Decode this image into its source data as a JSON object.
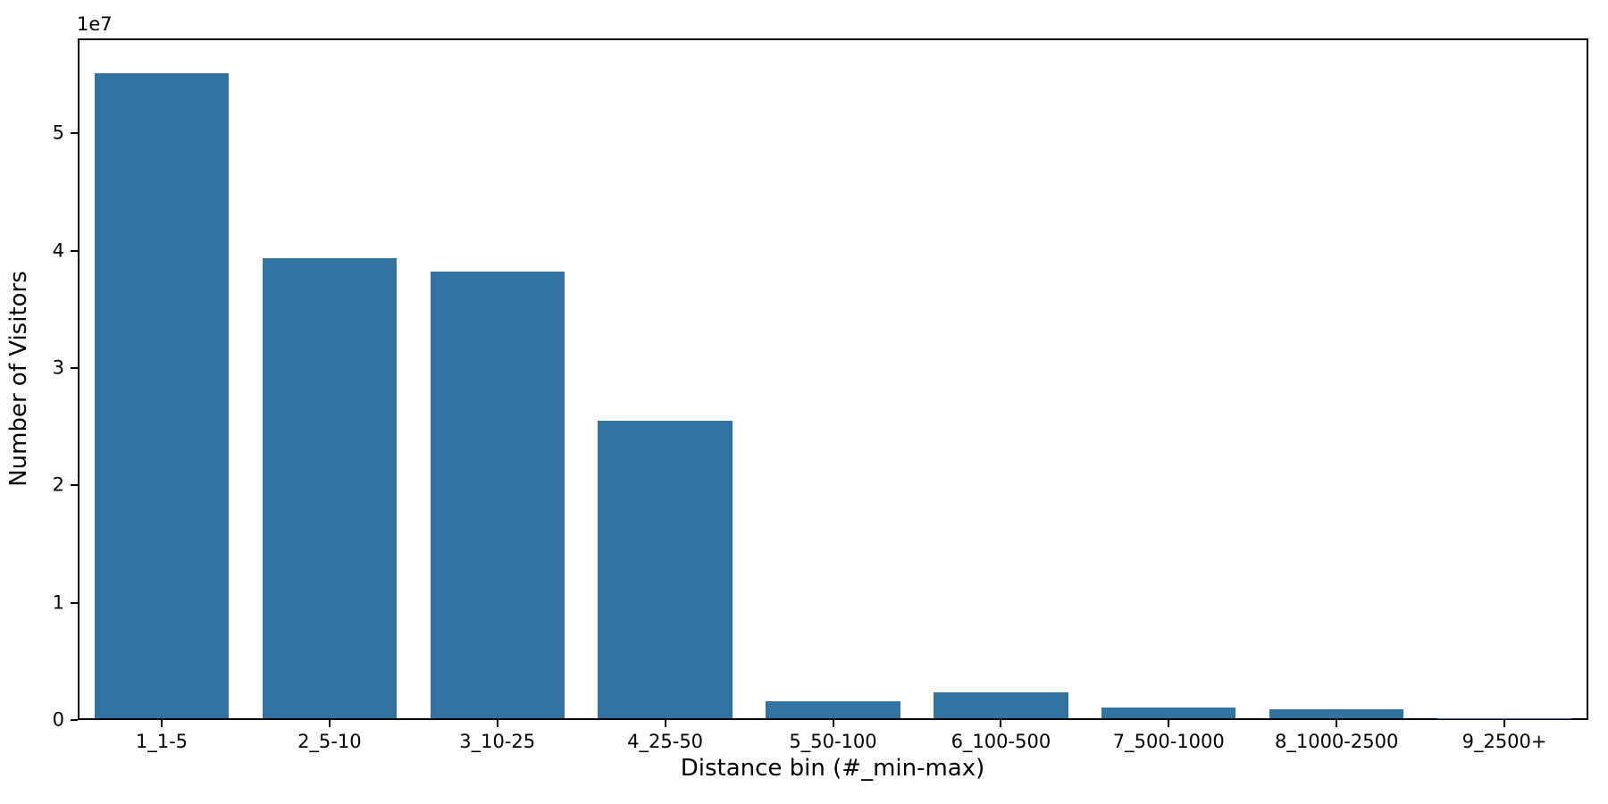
{
  "figure": {
    "background_color": "#ffffff",
    "axis_color": "#000000",
    "bar_color": "#3274A1"
  },
  "chart_data": {
    "type": "bar",
    "title": "",
    "xlabel": "Distance bin (#_min-max)",
    "ylabel": "Number of Visitors",
    "y_offset_text": "1e7",
    "categories": [
      "1_1-5",
      "2_5-10",
      "3_10-25",
      "4_25-50",
      "5_50-100",
      "6_100-500",
      "7_500-1000",
      "8_1000-2500",
      "9_2500+"
    ],
    "values": [
      55300000,
      39400000,
      38300000,
      25500000,
      1450000,
      2200000,
      950000,
      750000,
      20000
    ],
    "ylim": [
      0,
      58100000
    ],
    "yticks": [
      0,
      10000000,
      20000000,
      30000000,
      40000000,
      50000000
    ],
    "ytick_labels": [
      "0",
      "1",
      "2",
      "3",
      "4",
      "5"
    ],
    "bar_width_fraction": 0.8,
    "grid": false,
    "legend": null
  }
}
